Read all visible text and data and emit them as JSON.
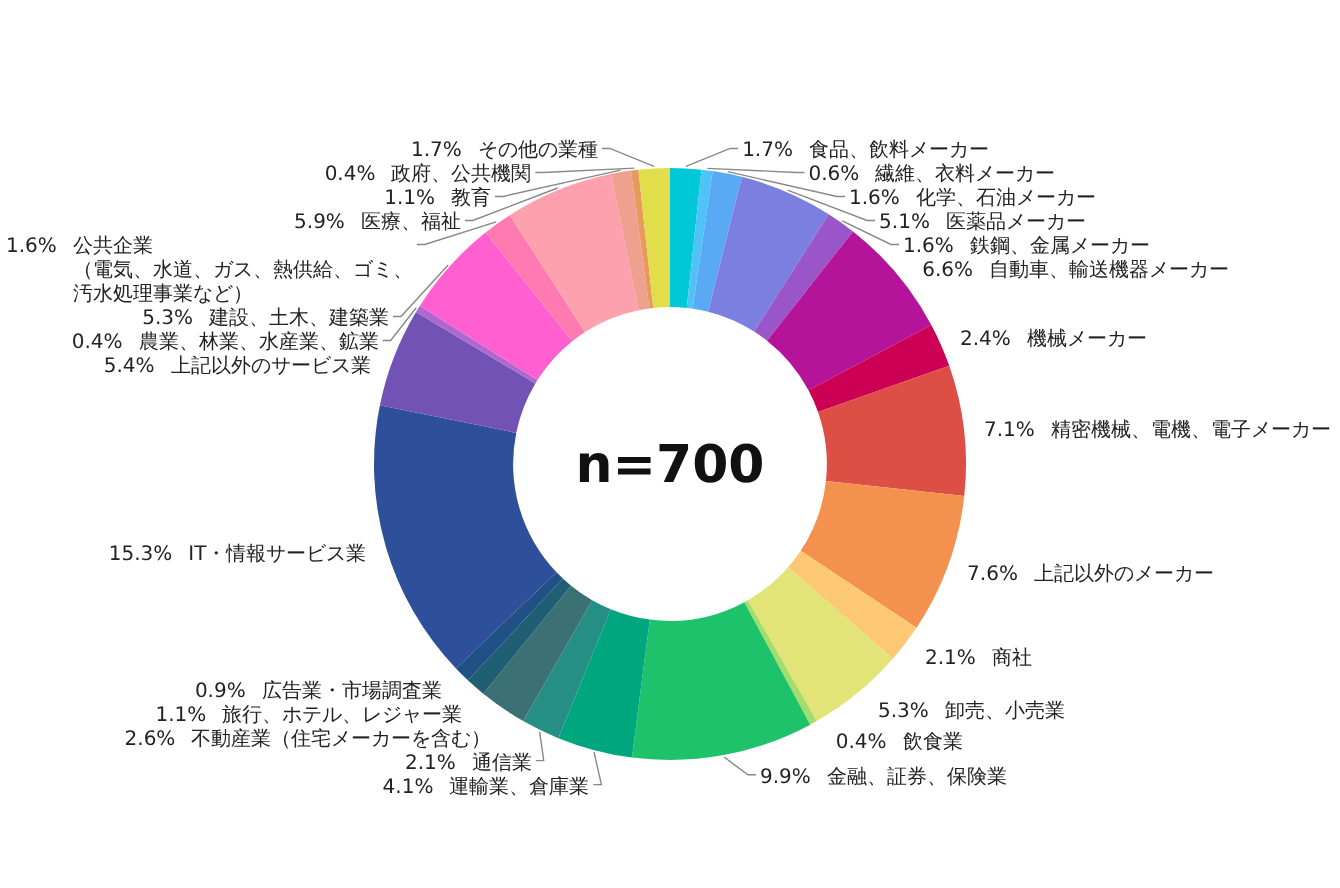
{
  "chart_data": {
    "type": "donut",
    "categories": [
      "食品、飲料メーカー",
      "繊維、衣料メーカー",
      "化学、石油メーカー",
      "医薬品メーカー",
      "鉄鋼、金属メーカー",
      "自動車、輸送機器メーカー",
      "機械メーカー",
      "精密機械、電機、電子メーカー",
      "上記以外のメーカー",
      "商社",
      "卸売、小売業",
      "飲食業",
      "金融、証券、保険業",
      "運輸業、倉庫業",
      "通信業",
      "不動産業（住宅メーカーを含む）",
      "旅行、ホテル、レジャー業",
      "広告業・市場調査業",
      "IT・情報サービス業",
      "上記以外のサービス業",
      "農業、林業、水産業、鉱業",
      "建設、土木、建築業",
      "公共企業（電気、水道、ガス、熱供給、ゴミ、汚水処理事業など）",
      "医療、福祉",
      "教育",
      "政府、公共機関",
      "その他の業種"
    ],
    "values": [
      1.7,
      0.6,
      1.6,
      5.1,
      1.6,
      6.6,
      2.4,
      7.1,
      7.6,
      2.1,
      5.3,
      0.4,
      9.9,
      4.1,
      2.1,
      2.6,
      1.1,
      0.9,
      15.3,
      5.4,
      0.4,
      5.3,
      1.6,
      5.9,
      1.1,
      0.4,
      1.7
    ],
    "colors": [
      "#00c8d7",
      "#4fc3f7",
      "#5aa9f5",
      "#7b7fe0",
      "#9a55c8",
      "#b5139a",
      "#cc0055",
      "#dd4f45",
      "#f4914f",
      "#fcc874",
      "#e3e478",
      "#a5dd6c",
      "#1dc26b",
      "#00a77e",
      "#258f86",
      "#3b7075",
      "#205e73",
      "#1f5086",
      "#2e4f9a",
      "#7352b5",
      "#b068cf",
      "#ff5fd0",
      "#ff7ab0",
      "#fda1ae",
      "#f0a08e",
      "#e89a5a",
      "#e2dd4a"
    ],
    "value_labels": [
      "1.7%",
      "0.6%",
      "1.6%",
      "5.1%",
      "1.6%",
      "6.6%",
      "2.4%",
      "7.1%",
      "7.6%",
      "2.1%",
      "5.3%",
      "0.4%",
      "9.9%",
      "4.1%",
      "2.1%",
      "2.6%",
      "1.1%",
      "0.9%",
      "15.3%",
      "5.4%",
      "0.4%",
      "5.3%",
      "1.6%",
      "5.9%",
      "1.1%",
      "0.4%",
      "1.7%"
    ],
    "annotations": [
      "n=700"
    ]
  }
}
